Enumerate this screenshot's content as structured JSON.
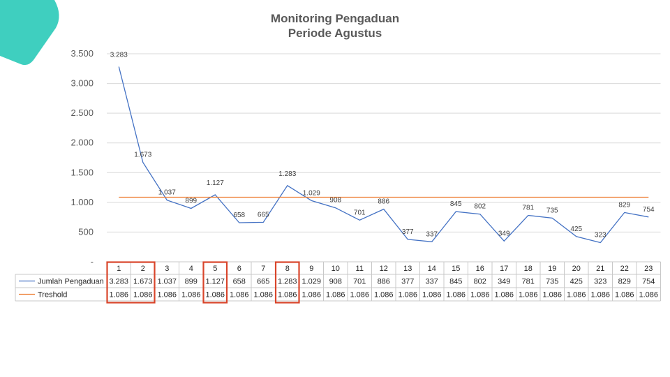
{
  "colors": {
    "series": "#4472c4",
    "threshold": "#ed7d31",
    "highlight": "#d9452b",
    "decoration": "#3fcfbf",
    "gridline": "#d9d9d9",
    "table_border": "#c8c8c8",
    "title": "#595959"
  },
  "chart_data": {
    "type": "line",
    "title": [
      "Monitoring Pengaduan",
      "Periode Agustus"
    ],
    "categories": [
      "1",
      "2",
      "3",
      "4",
      "5",
      "6",
      "7",
      "8",
      "9",
      "10",
      "11",
      "12",
      "13",
      "14",
      "15",
      "16",
      "17",
      "18",
      "19",
      "20",
      "21",
      "22",
      "23"
    ],
    "series": [
      {
        "name": "Jumlah Pengaduan",
        "values": [
          3283,
          1673,
          1037,
          899,
          1127,
          658,
          665,
          1283,
          1029,
          908,
          701,
          886,
          377,
          337,
          845,
          802,
          349,
          781,
          735,
          425,
          323,
          829,
          754
        ],
        "labels": [
          "3.283",
          "1.673",
          "1.037",
          "899",
          "1.127",
          "658",
          "665",
          "1.283",
          "1.029",
          "908",
          "701",
          "886",
          "377",
          "337",
          "845",
          "802",
          "349",
          "781",
          "735",
          "425",
          "323",
          "829",
          "754"
        ],
        "color": "#4472c4",
        "data_labels": true
      },
      {
        "name": "Treshold",
        "values": [
          1086,
          1086,
          1086,
          1086,
          1086,
          1086,
          1086,
          1086,
          1086,
          1086,
          1086,
          1086,
          1086,
          1086,
          1086,
          1086,
          1086,
          1086,
          1086,
          1086,
          1086,
          1086,
          1086
        ],
        "labels": [
          "1.086",
          "1.086",
          "1.086",
          "1.086",
          "1.086",
          "1.086",
          "1.086",
          "1.086",
          "1.086",
          "1.086",
          "1.086",
          "1.086",
          "1.086",
          "1.086",
          "1.086",
          "1.086",
          "1.086",
          "1.086",
          "1.086",
          "1.086",
          "1.086",
          "1.086",
          "1.086"
        ],
        "color": "#ed7d31",
        "data_labels": false
      }
    ],
    "y_ticks": [
      0,
      500,
      1000,
      1500,
      2000,
      2500,
      3000,
      3500
    ],
    "y_tick_labels": [
      "-",
      "500",
      "1.000",
      "1.500",
      "2.000",
      "2.500",
      "3.000",
      "3.500"
    ],
    "ylim": [
      0,
      3500
    ],
    "grid": true,
    "data_table": true,
    "highlighted_days": [
      "1",
      "2",
      "5",
      "8"
    ]
  }
}
